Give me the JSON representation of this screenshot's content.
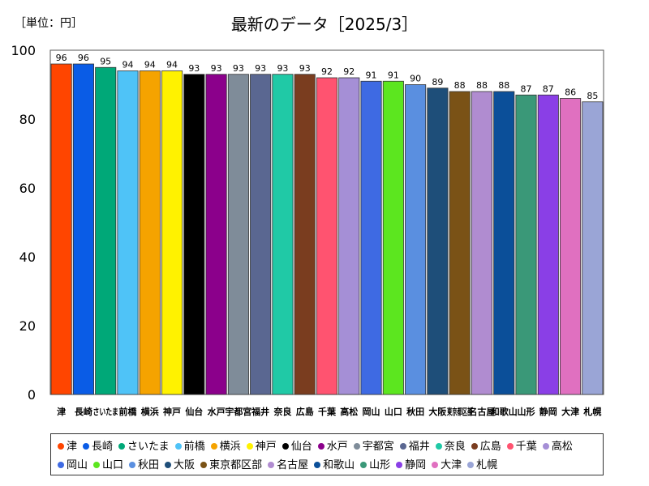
{
  "header": {
    "unit": "［単位：円］",
    "title": "最新のデータ［2025/3］"
  },
  "chart_data": {
    "type": "bar",
    "title": "最新のデータ［2025/3］",
    "ylabel": "",
    "xlabel": "",
    "ylim": [
      0,
      100
    ],
    "yticks": [
      0,
      20,
      40,
      60,
      80,
      100
    ],
    "grid": false,
    "legend_position": "bottom",
    "categories": [
      "津",
      "長崎",
      "さいたま",
      "前橋",
      "横浜",
      "神戸",
      "仙台",
      "水戸",
      "宇都宮",
      "福井",
      "奈良",
      "広島",
      "千葉",
      "高松",
      "岡山",
      "山口",
      "秋田",
      "大阪",
      "東京都区部",
      "名古屋",
      "和歌山",
      "山形",
      "静岡",
      "大津",
      "札幌"
    ],
    "values": [
      96,
      96,
      95,
      94,
      94,
      94,
      93,
      93,
      93,
      93,
      93,
      93,
      92,
      92,
      91,
      91,
      90,
      89,
      88,
      88,
      88,
      87,
      87,
      86,
      85
    ],
    "colors": [
      "#ff4500",
      "#0a5ce6",
      "#00a878",
      "#4fc3f7",
      "#f5a300",
      "#fff200",
      "#000000",
      "#8b008b",
      "#7f8c99",
      "#5a6791",
      "#20c9a6",
      "#7a3d1f",
      "#ff5370",
      "#a58fd6",
      "#3e6ae3",
      "#5ce61f",
      "#5a8fe0",
      "#1e4e79",
      "#7a5216",
      "#b08cd0",
      "#0b4f99",
      "#3a9878",
      "#8a3fe6",
      "#e070c0",
      "#9aa5d6"
    ]
  }
}
